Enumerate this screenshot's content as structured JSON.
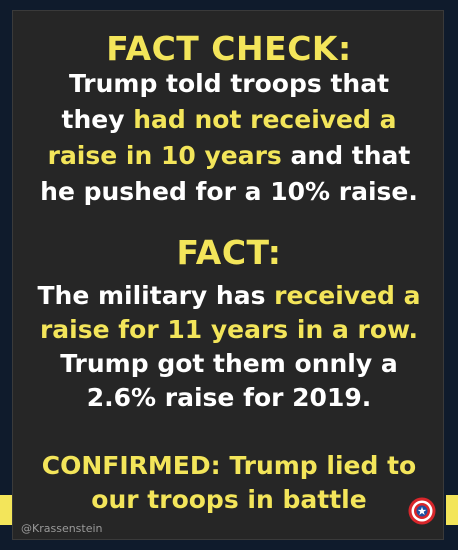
{
  "section1": {
    "heading": "FACT CHECK:",
    "line1": "Trump told troops that",
    "line2_pre": "they ",
    "line2_hl": "had not received a",
    "line3_hl": "raise in 10 years",
    "line3_post": " and that",
    "line4": "he pushed for a 10% raise."
  },
  "section2": {
    "heading": "FACT:",
    "line1_pre": "The military has ",
    "line1_hl": "received a",
    "line2_hl": "raise for 11 years in a row.",
    "line3": "Trump got them onnly a",
    "line4": "2.6% raise for 2019."
  },
  "section3": {
    "line1": "CONFIRMED: Trump lied to",
    "line2": "our troops in battle"
  },
  "footer": {
    "handle": "@Krassenstein",
    "badge_icon": "captain-america-shield-icon"
  },
  "colors": {
    "highlight": "#f3e55a",
    "text": "#ffffff",
    "card": "#262626",
    "background": "#0f1b2c"
  }
}
